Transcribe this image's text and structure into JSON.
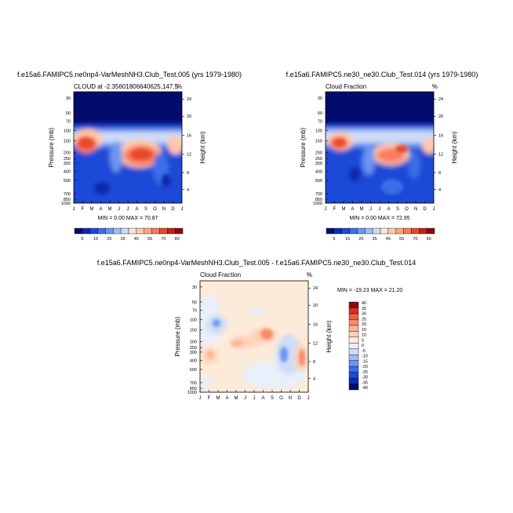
{
  "colors": {
    "cloud_scale": [
      "#030c6e",
      "#0a2cb0",
      "#1f4ad6",
      "#3b6ee8",
      "#6a95f0",
      "#9fbcf5",
      "#cfdcf7",
      "#ffe8d6",
      "#ffc9a9",
      "#ffa37e",
      "#f87c5b",
      "#e84a2f",
      "#c71f14",
      "#8c0a05"
    ],
    "diff_scale": [
      "#030c6e",
      "#0a2cb0",
      "#1f4ad6",
      "#3b6ee8",
      "#6a95f0",
      "#9fbcf5",
      "#cfdcf7",
      "#e9effb",
      "#fdebd9",
      "#ffd2b8",
      "#ffb094",
      "#f88a6b",
      "#ec5e40",
      "#d8301c",
      "#8c0a05"
    ]
  },
  "chart_data": [
    {
      "type": "heatmap",
      "title": "f.e15a6.FAMIPC5.ne0np4-VarMeshNH3.Club_Test.005 (yrs 1979-1980)",
      "subtitle_left": "CLOUD at -2.35601806640625,147.5",
      "subtitle_right": "%",
      "xlabel": "",
      "ylabel": "Pressure (mb)",
      "ylabel_right": "Height (km)",
      "x_ticks": [
        "J",
        "F",
        "M",
        "A",
        "M",
        "J",
        "J",
        "A",
        "S",
        "O",
        "N",
        "D",
        "J"
      ],
      "y_ticks": [
        "30",
        "50",
        "70",
        "100",
        "150",
        "200",
        "250",
        "300",
        "400",
        "500",
        "700",
        "850",
        "1000"
      ],
      "y_ticks_right": [
        "24",
        "20",
        "16",
        "12",
        "8",
        "4"
      ],
      "stats": "MIN =  0.00 MAX =  70.87",
      "colorbar_labels": [
        "5",
        "15",
        "25",
        "35",
        "45",
        "55",
        "70",
        "90"
      ],
      "max": 70.87,
      "min": 0.0
    },
    {
      "type": "heatmap",
      "title": "f.e15a6.FAMIPC5.ne30_ne30.Club_Test.014 (yrs 1979-1980)",
      "subtitle_left": "Cloud Fraction",
      "subtitle_right": "%",
      "xlabel": "",
      "ylabel": "Pressure (mb)",
      "ylabel_right": "Height (km)",
      "x_ticks": [
        "J",
        "F",
        "M",
        "A",
        "M",
        "J",
        "J",
        "A",
        "S",
        "O",
        "N",
        "D",
        "J"
      ],
      "y_ticks": [
        "30",
        "50",
        "70",
        "100",
        "150",
        "200",
        "250",
        "300",
        "400",
        "500",
        "700",
        "850",
        "1000"
      ],
      "y_ticks_right": [
        "24",
        "20",
        "16",
        "12",
        "8",
        "4"
      ],
      "stats": "MIN =  0.00 MAX =  72.95",
      "colorbar_labels": [
        "5",
        "15",
        "25",
        "35",
        "45",
        "55",
        "70",
        "90"
      ],
      "max": 72.95,
      "min": 0.0
    },
    {
      "type": "heatmap",
      "title": "f.e15a6.FAMIPC5.ne0np4-VarMeshNH3.Club_Test.005 - f.e15a6.FAMIPC5.ne30_ne30.Club_Test.014",
      "subtitle_left": "Cloud Fraction",
      "subtitle_right": "%",
      "xlabel": "",
      "ylabel": "Pressure (mb)",
      "ylabel_right": "Height (km)",
      "x_ticks": [
        "J",
        "F",
        "M",
        "A",
        "M",
        "J",
        "J",
        "A",
        "S",
        "O",
        "N",
        "D",
        "J"
      ],
      "y_ticks": [
        "30",
        "50",
        "70",
        "100",
        "150",
        "200",
        "250",
        "300",
        "400",
        "500",
        "700",
        "850",
        "1000"
      ],
      "y_ticks_right": [
        "24",
        "20",
        "16",
        "12",
        "8",
        "4"
      ],
      "stats": "MIN = -19.23 MAX =  21.20",
      "colorbar_labels": [
        "40",
        "35",
        "30",
        "25",
        "20",
        "15",
        "10",
        "5",
        "0",
        "-5",
        "-10",
        "-15",
        "-20",
        "-25",
        "-30",
        "-35",
        "-40"
      ],
      "max": 21.2,
      "min": -19.23
    }
  ]
}
